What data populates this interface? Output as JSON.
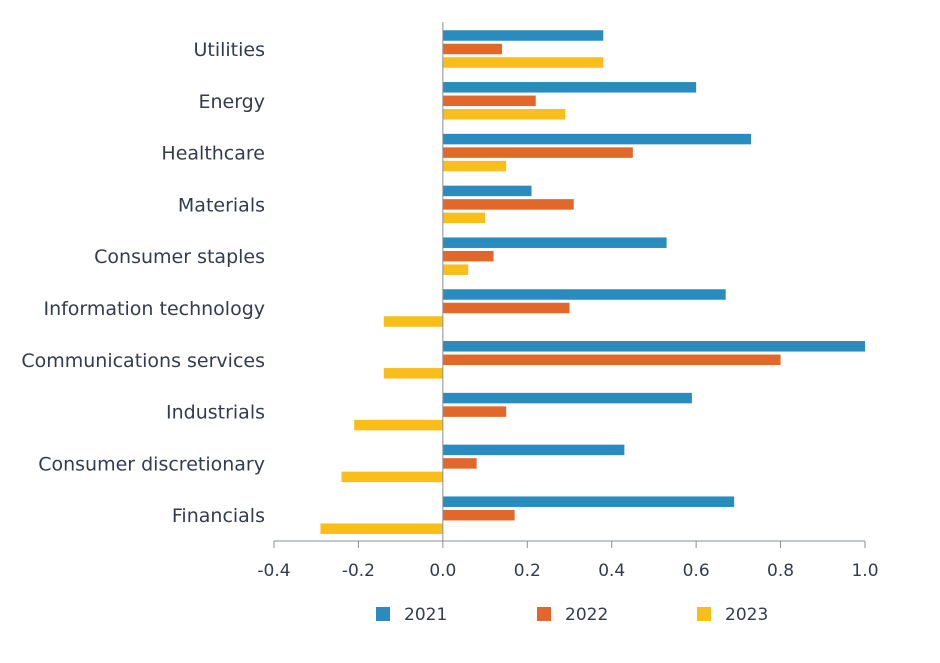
{
  "chart_data": {
    "type": "bar",
    "orientation": "horizontal",
    "categories": [
      "Utilities",
      "Energy",
      "Healthcare",
      "Materials",
      "Consumer staples",
      "Information technology",
      "Communications services",
      "Industrials",
      "Consumer discretionary",
      "Financials"
    ],
    "series": [
      {
        "name": "2021",
        "color": "#2a8bbf",
        "values": [
          0.38,
          0.6,
          0.73,
          0.21,
          0.53,
          0.67,
          1.0,
          0.59,
          0.43,
          0.69
        ]
      },
      {
        "name": "2022",
        "color": "#e2672b",
        "values": [
          0.14,
          0.22,
          0.45,
          0.31,
          0.12,
          0.3,
          0.8,
          0.15,
          0.08,
          0.17
        ]
      },
      {
        "name": "2023",
        "color": "#f9be1a",
        "values": [
          0.38,
          0.29,
          0.15,
          0.1,
          0.06,
          -0.14,
          -0.14,
          -0.21,
          -0.24,
          -0.29
        ]
      }
    ],
    "xlim": [
      -0.4,
      1.0
    ],
    "x_ticks": [
      "-0.4",
      "-0.2",
      "0.0",
      "0.2",
      "0.4",
      "0.6",
      "0.8",
      "1.0"
    ],
    "grid": false,
    "legend_position": "bottom"
  }
}
